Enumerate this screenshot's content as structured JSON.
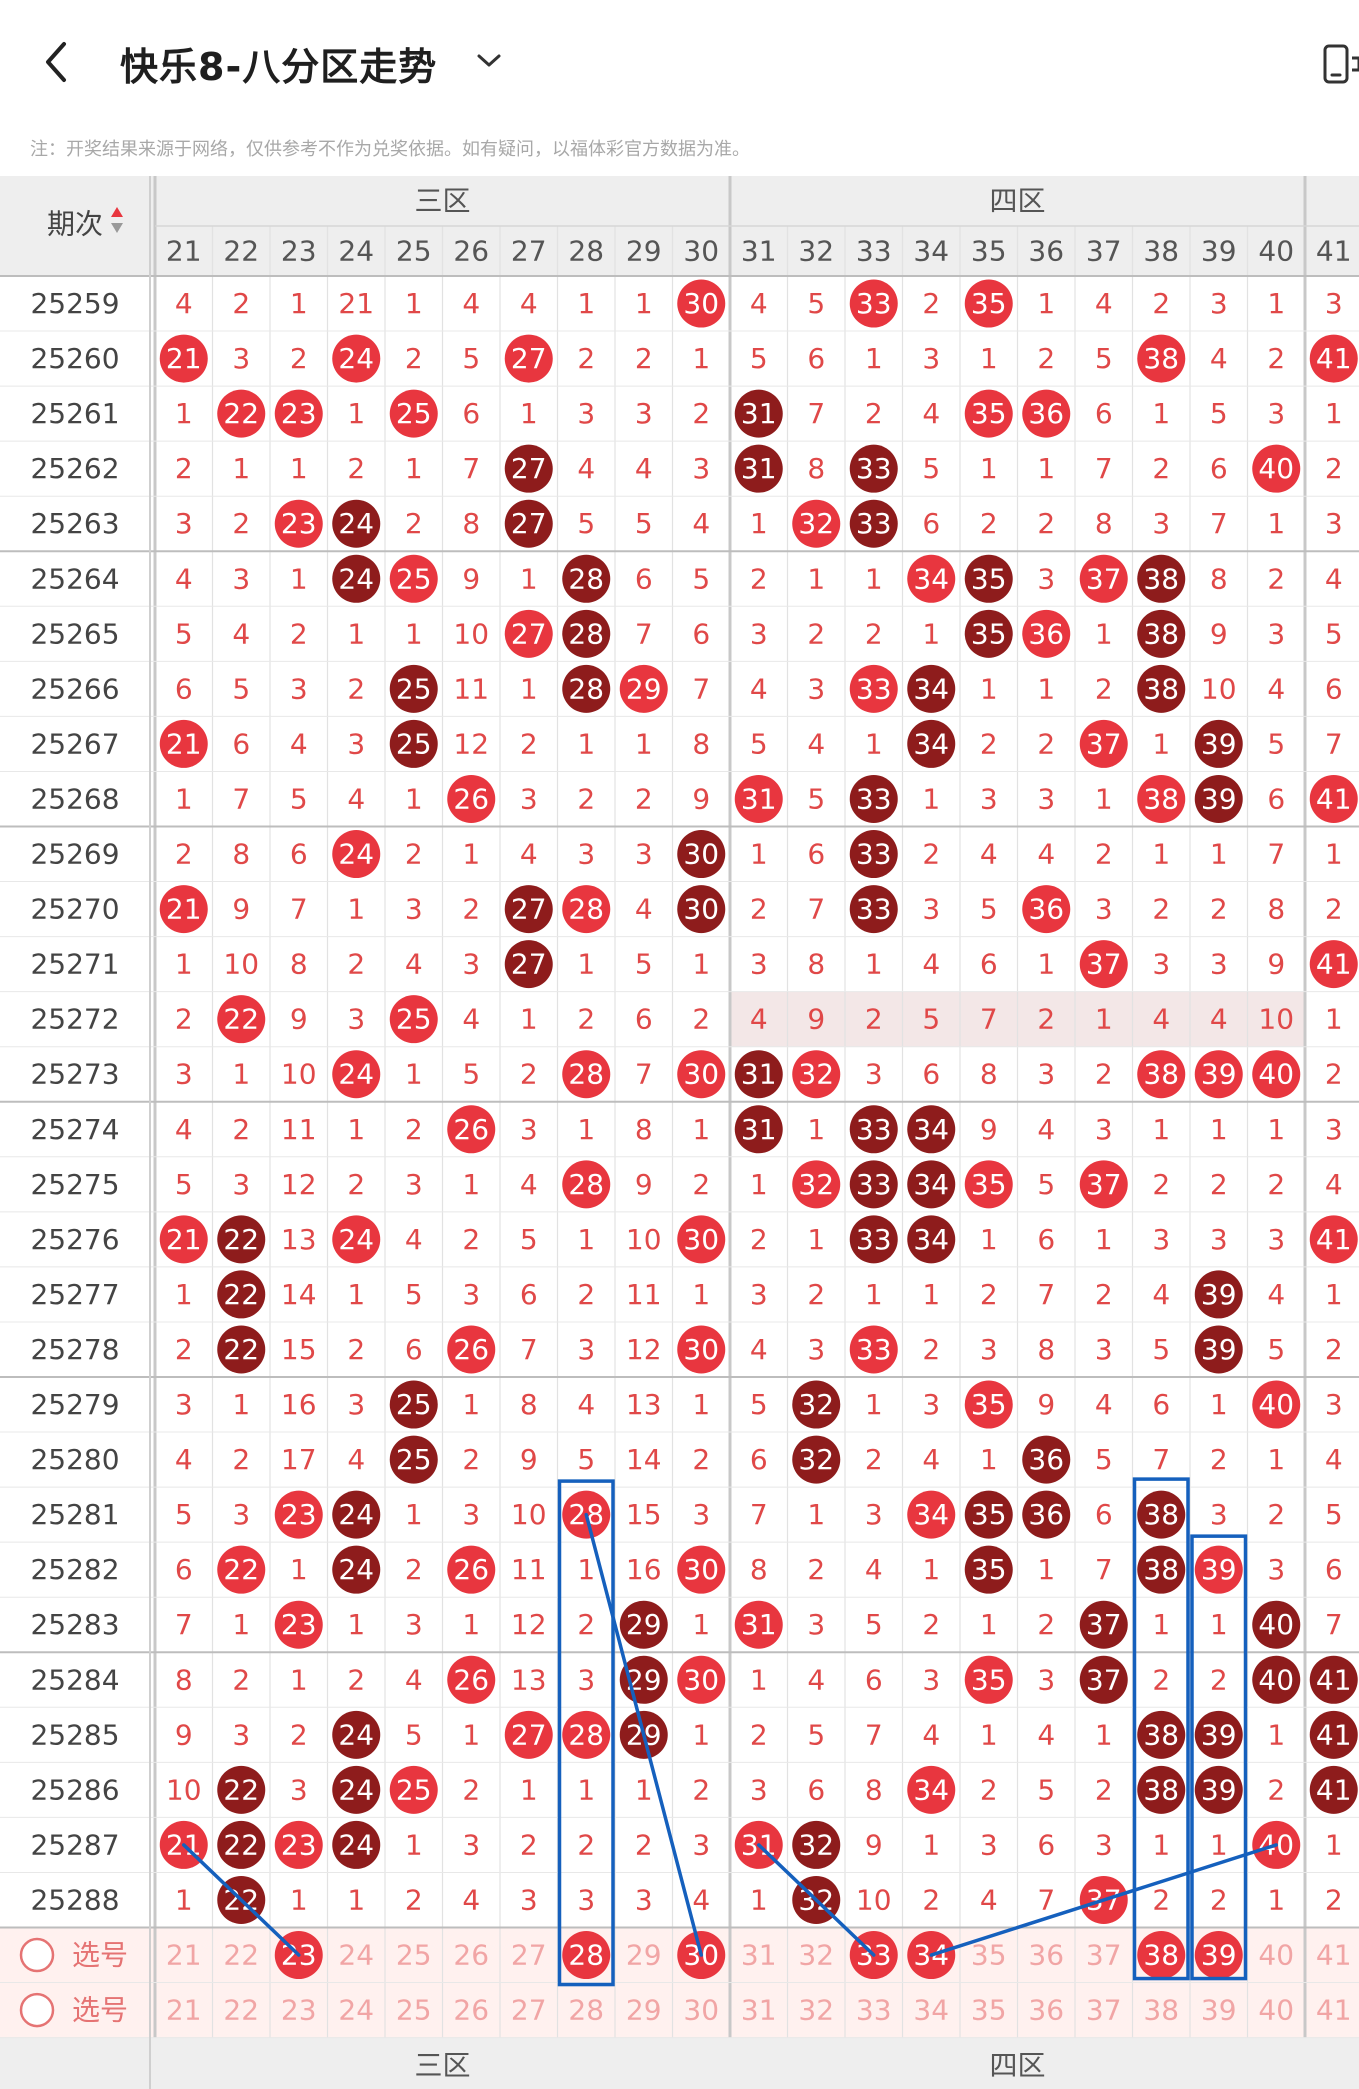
{
  "header": {
    "title": "快乐8-八分区走势",
    "back_icon": "chevron-left-icon",
    "dropdown_icon": "chevron-down-icon",
    "right_icon": "phone-rotate-icon"
  },
  "notice": "注：开奖结果来源于网络，仅供参考不作为兑奖依据。如有疑问，以福体彩官方数据为准。",
  "table": {
    "period_header": "期次",
    "zone_labels": [
      "三区",
      "四区"
    ],
    "columns": [
      "21",
      "22",
      "23",
      "24",
      "25",
      "26",
      "27",
      "28",
      "29",
      "30",
      "31",
      "32",
      "33",
      "34",
      "35",
      "36",
      "37",
      "38",
      "39",
      "40",
      "41"
    ],
    "rows": [
      {
        "period": "25259",
        "values": [
          4,
          2,
          1,
          21,
          1,
          4,
          4,
          1,
          1,
          30,
          4,
          5,
          33,
          2,
          35,
          1,
          4,
          2,
          3,
          1,
          3
        ],
        "hits": [
          30,
          33,
          35
        ]
      },
      {
        "period": "25260",
        "values": [
          21,
          3,
          2,
          24,
          2,
          5,
          27,
          2,
          2,
          1,
          5,
          6,
          1,
          3,
          1,
          2,
          5,
          38,
          4,
          2,
          41
        ],
        "hits": [
          21,
          24,
          27,
          38,
          41
        ]
      },
      {
        "period": "25261",
        "values": [
          1,
          22,
          23,
          1,
          25,
          6,
          1,
          3,
          3,
          2,
          31,
          7,
          2,
          4,
          35,
          36,
          6,
          1,
          5,
          3,
          1
        ],
        "hits": [
          22,
          23,
          25,
          31,
          35,
          36
        ]
      },
      {
        "period": "25262",
        "values": [
          2,
          1,
          1,
          2,
          1,
          7,
          27,
          4,
          4,
          3,
          31,
          8,
          33,
          5,
          1,
          1,
          7,
          2,
          6,
          40,
          2
        ],
        "hits": [
          27,
          31,
          33,
          40
        ]
      },
      {
        "period": "25263",
        "values": [
          3,
          2,
          23,
          24,
          2,
          8,
          27,
          5,
          5,
          4,
          1,
          32,
          33,
          6,
          2,
          2,
          8,
          3,
          7,
          1,
          3
        ],
        "hits": [
          23,
          24,
          27,
          32,
          33
        ]
      },
      {
        "period": "25264",
        "values": [
          4,
          3,
          1,
          24,
          25,
          9,
          1,
          28,
          6,
          5,
          2,
          1,
          1,
          34,
          35,
          3,
          37,
          38,
          8,
          2,
          4
        ],
        "hits": [
          24,
          25,
          28,
          34,
          35,
          37,
          38
        ]
      },
      {
        "period": "25265",
        "values": [
          5,
          4,
          2,
          1,
          1,
          10,
          27,
          28,
          7,
          6,
          3,
          2,
          2,
          1,
          35,
          36,
          1,
          38,
          9,
          3,
          5
        ],
        "hits": [
          27,
          28,
          35,
          36,
          38
        ]
      },
      {
        "period": "25266",
        "values": [
          6,
          5,
          3,
          2,
          25,
          11,
          1,
          28,
          29,
          7,
          4,
          3,
          33,
          34,
          1,
          1,
          2,
          38,
          10,
          4,
          6
        ],
        "hits": [
          25,
          28,
          29,
          33,
          34,
          38
        ]
      },
      {
        "period": "25267",
        "values": [
          21,
          6,
          4,
          3,
          25,
          12,
          2,
          1,
          1,
          8,
          5,
          4,
          1,
          34,
          2,
          2,
          37,
          1,
          39,
          5,
          7
        ],
        "hits": [
          21,
          25,
          34,
          37,
          39
        ]
      },
      {
        "period": "25268",
        "values": [
          1,
          7,
          5,
          4,
          1,
          26,
          3,
          2,
          2,
          9,
          31,
          5,
          33,
          1,
          3,
          3,
          1,
          38,
          39,
          6,
          41
        ],
        "hits": [
          26,
          31,
          33,
          38,
          39,
          41
        ]
      },
      {
        "period": "25269",
        "values": [
          2,
          8,
          6,
          24,
          2,
          1,
          4,
          3,
          3,
          30,
          1,
          6,
          33,
          2,
          4,
          4,
          2,
          1,
          1,
          7,
          1
        ],
        "hits": [
          24,
          30,
          33
        ]
      },
      {
        "period": "25270",
        "values": [
          21,
          9,
          7,
          1,
          3,
          2,
          27,
          28,
          4,
          30,
          2,
          7,
          33,
          3,
          5,
          36,
          3,
          2,
          2,
          8,
          2
        ],
        "hits": [
          21,
          27,
          28,
          30,
          33,
          36
        ]
      },
      {
        "period": "25271",
        "values": [
          1,
          10,
          8,
          2,
          4,
          3,
          27,
          1,
          5,
          1,
          3,
          8,
          1,
          4,
          6,
          1,
          37,
          3,
          3,
          9,
          41
        ],
        "hits": [
          27,
          37,
          41
        ]
      },
      {
        "period": "25272",
        "values": [
          2,
          22,
          9,
          3,
          25,
          4,
          1,
          2,
          6,
          2,
          4,
          9,
          2,
          5,
          7,
          2,
          1,
          4,
          4,
          10,
          1
        ],
        "hits": [
          22,
          25
        ]
      },
      {
        "period": "25273",
        "values": [
          3,
          1,
          10,
          24,
          1,
          5,
          2,
          28,
          7,
          30,
          31,
          32,
          3,
          6,
          8,
          3,
          2,
          38,
          39,
          40,
          2
        ],
        "hits": [
          24,
          28,
          30,
          31,
          32,
          38,
          39,
          40
        ]
      },
      {
        "period": "25274",
        "values": [
          4,
          2,
          11,
          1,
          2,
          26,
          3,
          1,
          8,
          1,
          31,
          1,
          33,
          34,
          9,
          4,
          3,
          1,
          1,
          1,
          3
        ],
        "hits": [
          26,
          31,
          33,
          34
        ]
      },
      {
        "period": "25275",
        "values": [
          5,
          3,
          12,
          2,
          3,
          1,
          4,
          28,
          9,
          2,
          1,
          32,
          33,
          34,
          35,
          5,
          37,
          2,
          2,
          2,
          4
        ],
        "hits": [
          28,
          32,
          33,
          34,
          35,
          37
        ]
      },
      {
        "period": "25276",
        "values": [
          21,
          22,
          13,
          24,
          4,
          2,
          5,
          1,
          10,
          30,
          2,
          1,
          33,
          34,
          1,
          6,
          1,
          3,
          3,
          3,
          41
        ],
        "hits": [
          21,
          22,
          24,
          30,
          33,
          34,
          41
        ]
      },
      {
        "period": "25277",
        "values": [
          1,
          22,
          14,
          1,
          5,
          3,
          6,
          2,
          11,
          1,
          3,
          2,
          1,
          1,
          2,
          7,
          2,
          4,
          39,
          4,
          1
        ],
        "hits": [
          22,
          39
        ]
      },
      {
        "period": "25278",
        "values": [
          2,
          22,
          15,
          2,
          6,
          26,
          7,
          3,
          12,
          30,
          4,
          3,
          33,
          2,
          3,
          8,
          3,
          5,
          39,
          5,
          2
        ],
        "hits": [
          22,
          26,
          30,
          33,
          39
        ]
      },
      {
        "period": "25279",
        "values": [
          3,
          1,
          16,
          3,
          25,
          1,
          8,
          4,
          13,
          1,
          5,
          32,
          1,
          3,
          35,
          9,
          4,
          6,
          1,
          40,
          3
        ],
        "hits": [
          25,
          32,
          35,
          40
        ]
      },
      {
        "period": "25280",
        "values": [
          4,
          2,
          17,
          4,
          25,
          2,
          9,
          5,
          14,
          2,
          6,
          32,
          2,
          4,
          1,
          36,
          5,
          7,
          2,
          1,
          4
        ],
        "hits": [
          25,
          32,
          36
        ]
      },
      {
        "period": "25281",
        "values": [
          5,
          3,
          23,
          24,
          1,
          3,
          10,
          28,
          15,
          3,
          7,
          1,
          3,
          34,
          35,
          36,
          6,
          38,
          3,
          2,
          5
        ],
        "hits": [
          23,
          24,
          28,
          34,
          35,
          36,
          38
        ]
      },
      {
        "period": "25282",
        "values": [
          6,
          22,
          1,
          24,
          2,
          26,
          11,
          1,
          16,
          30,
          8,
          2,
          4,
          1,
          35,
          1,
          7,
          38,
          39,
          3,
          6
        ],
        "hits": [
          22,
          24,
          26,
          30,
          35,
          38,
          39
        ]
      },
      {
        "period": "25283",
        "values": [
          7,
          1,
          23,
          1,
          3,
          1,
          12,
          2,
          29,
          1,
          31,
          3,
          5,
          2,
          1,
          2,
          37,
          1,
          1,
          40,
          7
        ],
        "hits": [
          23,
          29,
          31,
          37,
          40
        ]
      },
      {
        "period": "25284",
        "values": [
          8,
          2,
          1,
          2,
          4,
          26,
          13,
          3,
          29,
          30,
          1,
          4,
          6,
          3,
          35,
          3,
          37,
          2,
          2,
          40,
          41
        ],
        "hits": [
          26,
          29,
          30,
          35,
          37,
          40,
          41
        ]
      },
      {
        "period": "25285",
        "values": [
          9,
          3,
          2,
          24,
          5,
          1,
          27,
          28,
          29,
          1,
          2,
          5,
          7,
          4,
          1,
          4,
          1,
          38,
          39,
          1,
          41
        ],
        "hits": [
          24,
          27,
          28,
          29,
          38,
          39,
          41
        ]
      },
      {
        "period": "25286",
        "values": [
          10,
          22,
          3,
          24,
          25,
          2,
          1,
          1,
          1,
          2,
          3,
          6,
          8,
          34,
          2,
          5,
          2,
          38,
          39,
          2,
          41
        ],
        "hits": [
          22,
          24,
          25,
          34,
          38,
          39,
          41
        ]
      },
      {
        "period": "25287",
        "values": [
          21,
          22,
          23,
          24,
          1,
          3,
          2,
          2,
          2,
          3,
          31,
          32,
          9,
          1,
          3,
          6,
          3,
          1,
          1,
          40,
          1
        ],
        "hits": [
          21,
          22,
          23,
          24,
          31,
          32,
          40
        ]
      },
      {
        "period": "25288",
        "values": [
          1,
          22,
          1,
          1,
          2,
          4,
          3,
          3,
          3,
          4,
          1,
          32,
          10,
          2,
          4,
          7,
          37,
          2,
          2,
          1,
          2
        ],
        "hits": [
          22,
          32,
          37
        ]
      }
    ],
    "pick_label": "选号",
    "pick_rows": [
      {
        "selected": [
          23,
          28,
          30,
          33,
          34,
          38,
          39
        ]
      },
      {
        "selected": []
      }
    ]
  },
  "colors": {
    "red_ball": "#e8363f",
    "dark_ball": "#8e1c1c",
    "miss_text": "#e04848",
    "pick_text": "#f1a5a5",
    "pick_bg": "#fff1ef",
    "header_bg": "#eeeeee",
    "line": "#1560bd"
  }
}
